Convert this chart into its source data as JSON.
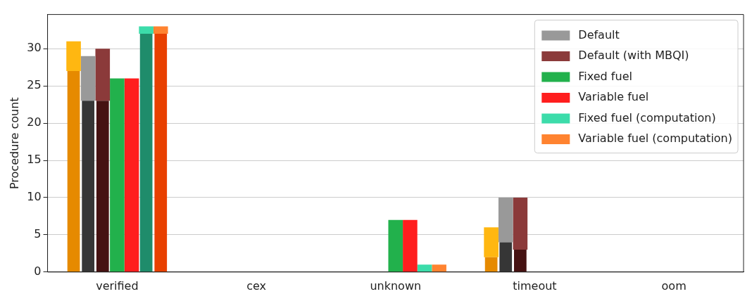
{
  "chart_data": {
    "type": "bar",
    "ylabel": "Procedure count",
    "categories": [
      "verified",
      "cex",
      "unknown",
      "timeout",
      "oom"
    ],
    "ylim": [
      0,
      34.6
    ],
    "yticks": [
      0,
      5,
      10,
      15,
      20,
      25,
      30
    ],
    "grid": "y",
    "legend": "top right",
    "series": [
      {
        "color": "#e68a00",
        "values": [
          27,
          0,
          0,
          2,
          0
        ]
      },
      {
        "color": "#ffb711",
        "values": [
          4,
          null,
          null,
          4,
          null
        ],
        "base": [
          27,
          null,
          null,
          2,
          null
        ]
      },
      {
        "color": "#363636",
        "values": [
          23,
          0,
          0,
          4,
          0
        ]
      },
      {
        "name": "Default",
        "color": "#999999",
        "values": [
          6,
          null,
          null,
          6,
          null
        ],
        "base": [
          23,
          null,
          null,
          4,
          null
        ]
      },
      {
        "color": "#451212",
        "values": [
          23,
          0,
          0,
          3,
          0
        ]
      },
      {
        "name": "Default (with MBQI)",
        "color": "#8b3a3a",
        "values": [
          7,
          null,
          null,
          7,
          null
        ],
        "base": [
          23,
          null,
          null,
          3,
          null
        ]
      },
      {
        "name": "Fixed fuel",
        "color": "#22b14c",
        "values": [
          26,
          null,
          7,
          null,
          null
        ],
        "base": [
          0,
          null,
          0,
          null,
          null
        ]
      },
      {
        "name": "Variable fuel",
        "color": "#ff1e1e",
        "values": [
          26,
          null,
          7,
          null,
          null
        ],
        "base": [
          0,
          null,
          0,
          null,
          null
        ]
      },
      {
        "color": "#1f8c6b",
        "values": [
          32,
          0,
          0,
          0,
          0
        ]
      },
      {
        "name": "Fixed fuel (computation)",
        "color": "#3cdcaa",
        "values": [
          1,
          null,
          1,
          null,
          null
        ],
        "base": [
          32,
          null,
          0,
          null,
          null
        ]
      },
      {
        "color": "#e84000",
        "values": [
          32,
          0,
          0,
          0,
          0
        ]
      },
      {
        "name": "Variable fuel (computation)",
        "color": "#ff8330",
        "values": [
          1,
          null,
          1,
          null,
          null
        ],
        "base": [
          32,
          null,
          0,
          null,
          null
        ]
      }
    ]
  }
}
